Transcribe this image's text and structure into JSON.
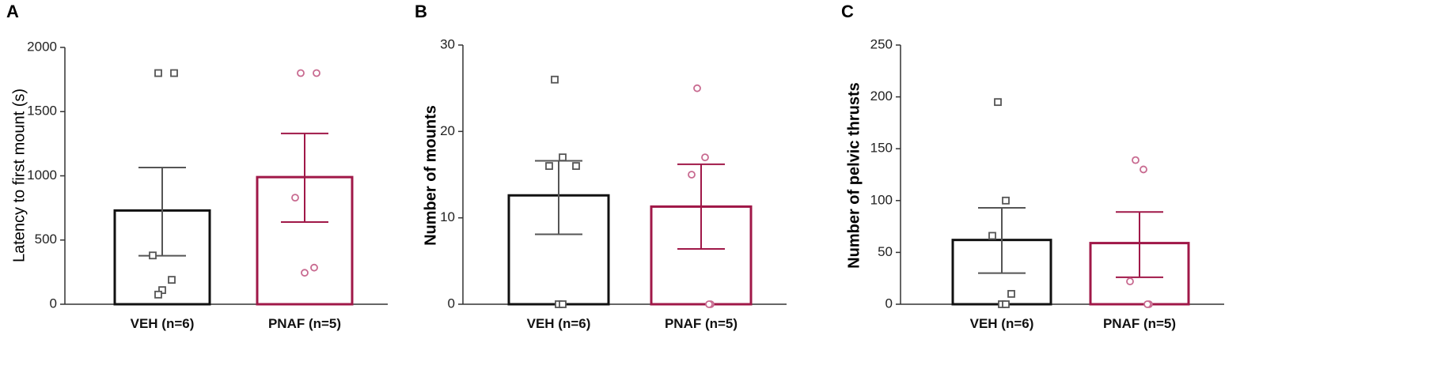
{
  "chart_data": [
    {
      "panel": "A",
      "type": "bar",
      "ylabel": "Latency to first mount (s)",
      "ylim": [
        0,
        2000
      ],
      "yticks": [
        0,
        500,
        1000,
        1500,
        2000
      ],
      "categories": [
        "VEH (n=6)",
        "PNAF (n=5)"
      ],
      "values": [
        730,
        990
      ],
      "error_upper": [
        1065,
        1330
      ],
      "error_lower": [
        378,
        640
      ],
      "points": [
        [
          1800,
          1800,
          380,
          190,
          110,
          75
        ],
        [
          1800,
          1800,
          830,
          285,
          245
        ]
      ]
    },
    {
      "panel": "B",
      "type": "bar",
      "ylabel": "Number of mounts",
      "ylim": [
        0,
        30
      ],
      "yticks": [
        0,
        10,
        20,
        30
      ],
      "categories": [
        "VEH (n=6)",
        "PNAF (n=5)"
      ],
      "values": [
        12.6,
        11.3
      ],
      "error_upper": [
        16.6,
        16.2
      ],
      "error_lower": [
        8.1,
        6.4
      ],
      "points": [
        [
          26,
          17,
          16,
          16,
          0,
          0
        ],
        [
          25,
          17,
          15,
          0,
          0
        ]
      ]
    },
    {
      "panel": "C",
      "type": "bar",
      "ylabel": "Number of pelvic thrusts",
      "ylim": [
        0,
        250
      ],
      "yticks": [
        0,
        50,
        100,
        150,
        200,
        250
      ],
      "categories": [
        "VEH (n=6)",
        "PNAF (n=5)"
      ],
      "values": [
        62,
        59
      ],
      "error_upper": [
        93,
        89
      ],
      "error_lower": [
        30,
        26
      ],
      "points": [
        [
          195,
          100,
          66,
          10,
          0,
          0
        ],
        [
          139,
          130,
          22,
          0,
          0
        ]
      ]
    }
  ],
  "colors": {
    "veh": "#111111",
    "veh_points": "#555555",
    "pnaf": "#a01848",
    "pnaf_points": "#c86a90"
  }
}
